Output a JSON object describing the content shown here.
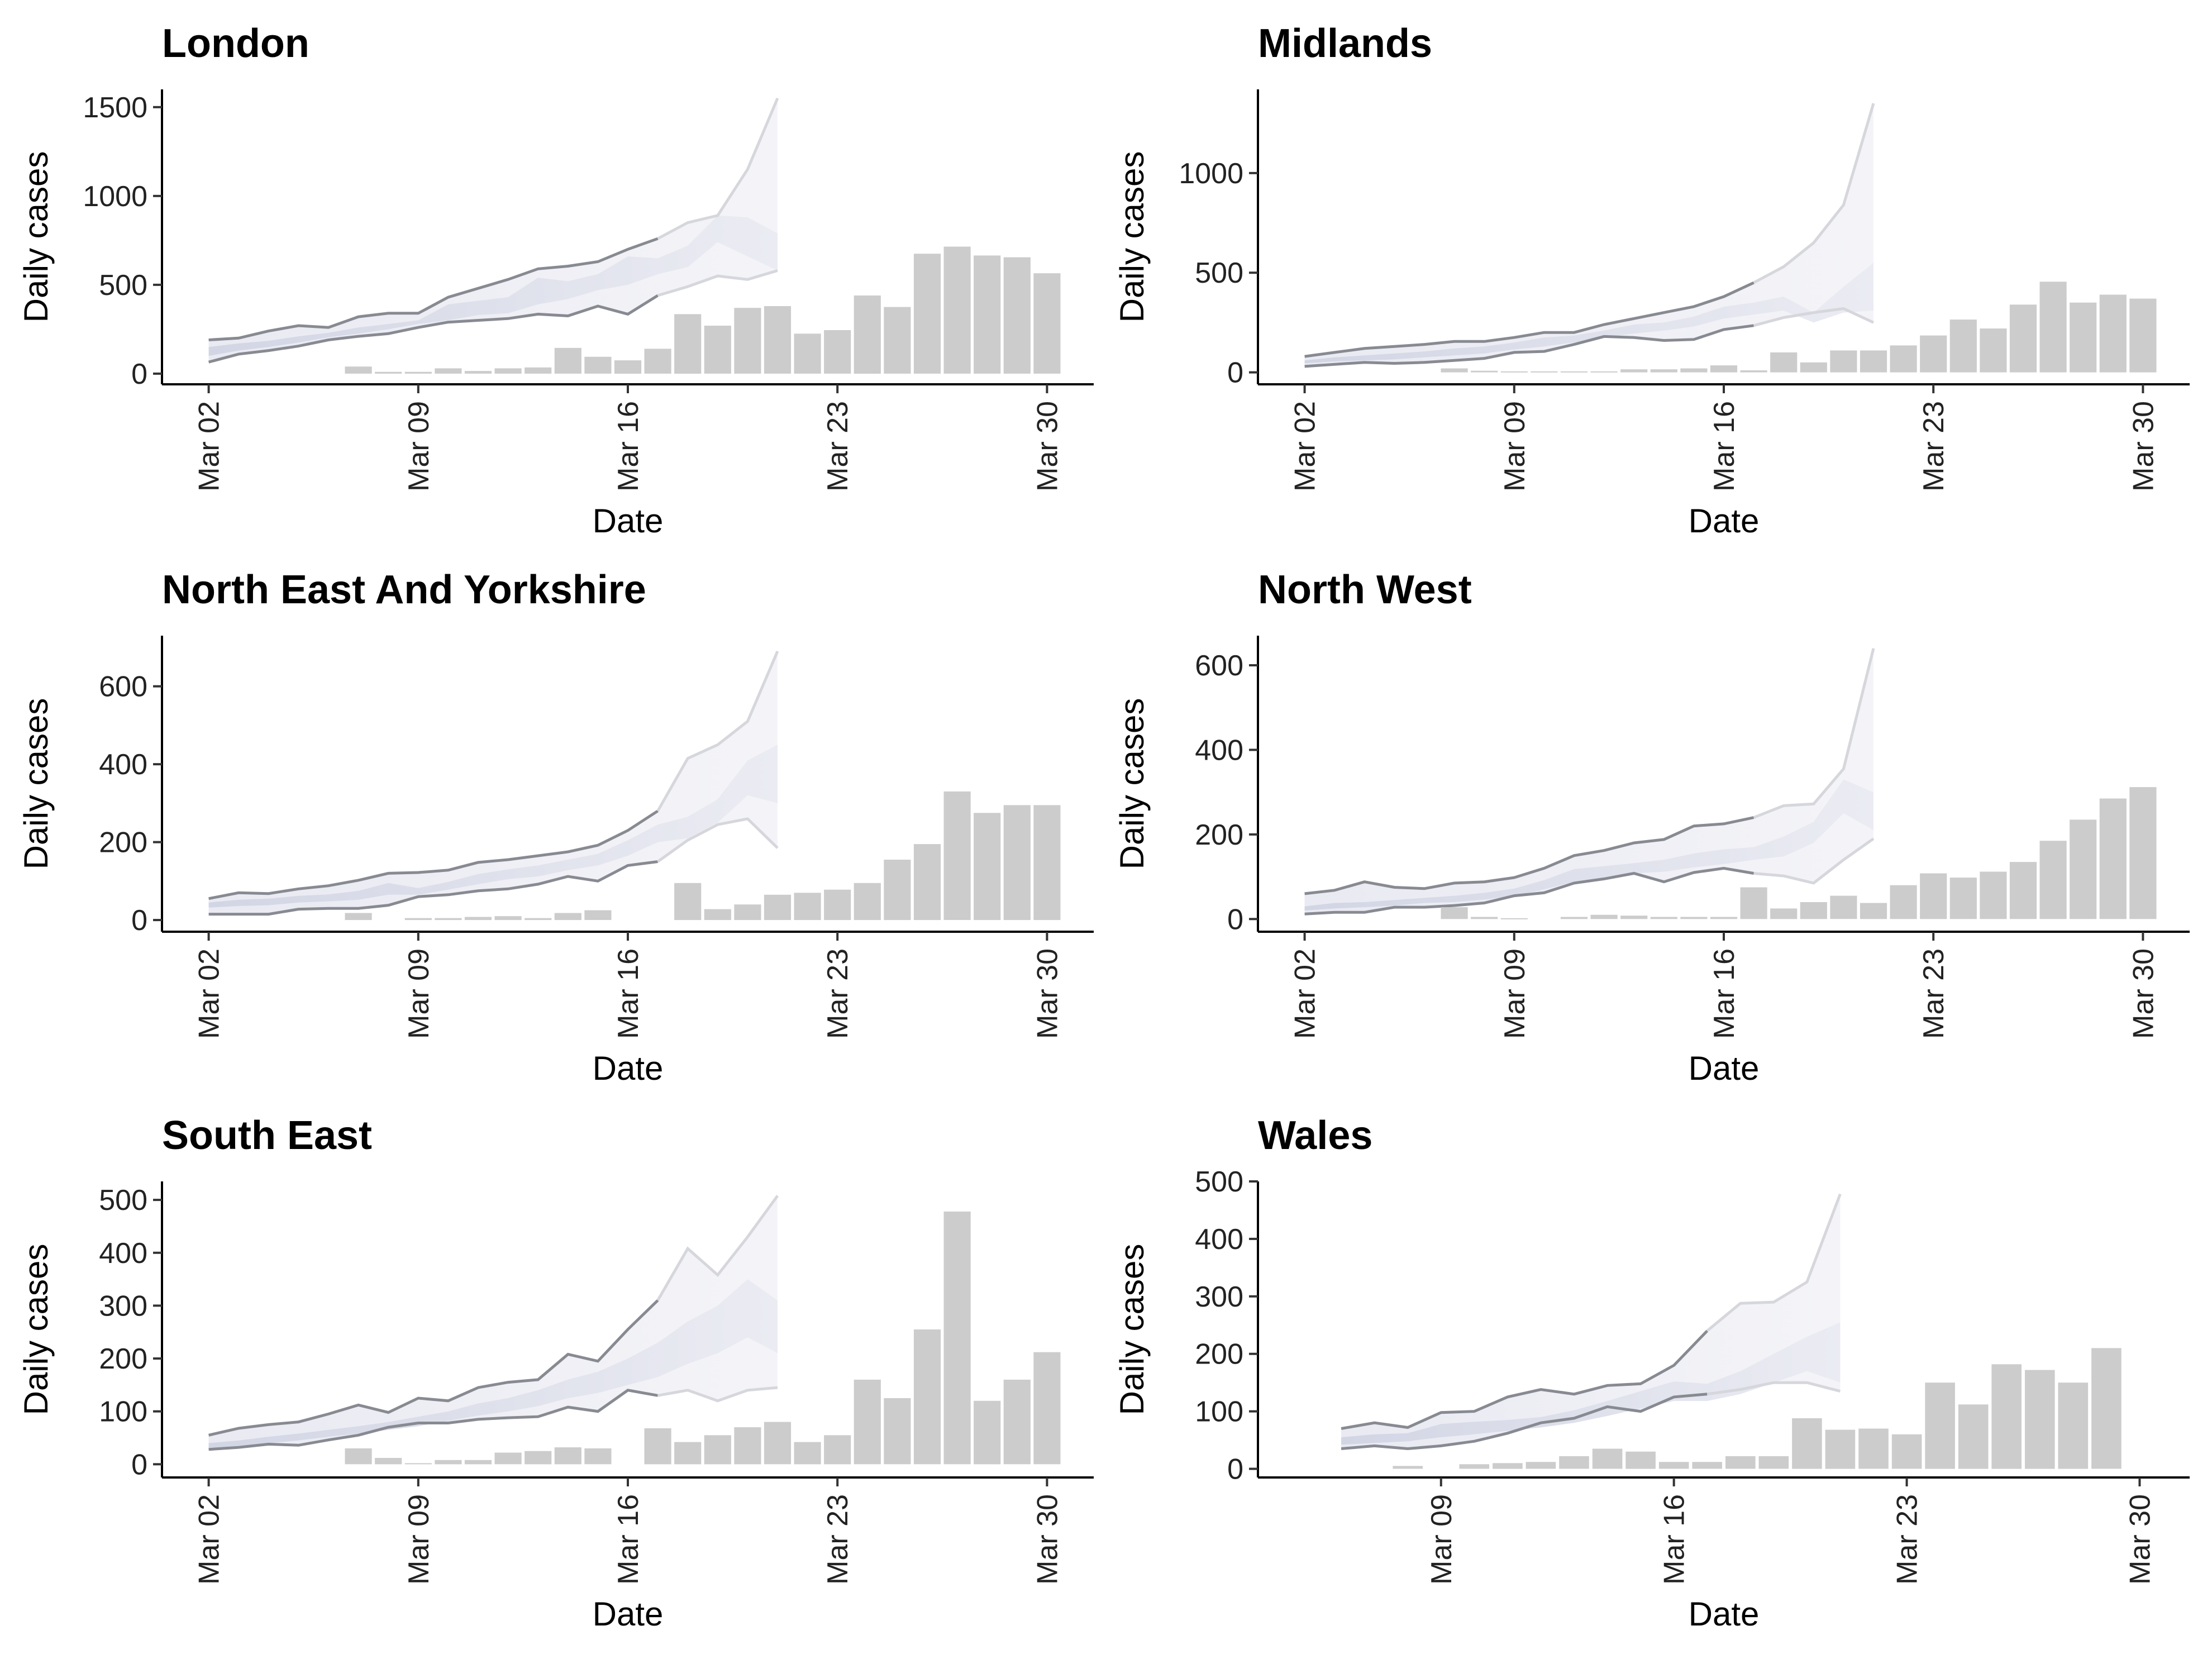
{
  "chart_data": [
    {
      "type": "bar",
      "title": "London",
      "xlabel": "Date",
      "ylabel": "Daily cases",
      "x_ticks": [
        "Mar 02",
        "Mar 09",
        "Mar 16",
        "Mar 23",
        "Mar 30"
      ],
      "y_ticks": [
        0,
        500,
        1000,
        1500
      ],
      "ylim": [
        -60,
        1600
      ],
      "xlim": [
        "2020-03-01",
        "2020-03-31"
      ],
      "cases": {
        "dates": [
          "2020-03-07",
          "2020-03-08",
          "2020-03-09",
          "2020-03-10",
          "2020-03-11",
          "2020-03-12",
          "2020-03-13",
          "2020-03-14",
          "2020-03-15",
          "2020-03-16",
          "2020-03-17",
          "2020-03-18",
          "2020-03-19",
          "2020-03-20",
          "2020-03-21",
          "2020-03-22",
          "2020-03-23",
          "2020-03-24",
          "2020-03-25",
          "2020-03-26",
          "2020-03-27",
          "2020-03-28",
          "2020-03-29",
          "2020-03-30"
        ],
        "values": [
          40,
          10,
          10,
          30,
          15,
          30,
          35,
          145,
          95,
          75,
          140,
          335,
          270,
          370,
          380,
          225,
          245,
          440,
          375,
          675,
          715,
          665,
          655,
          565
        ]
      },
      "estimate": {
        "dates": [
          "2020-03-02",
          "2020-03-03",
          "2020-03-04",
          "2020-03-05",
          "2020-03-06",
          "2020-03-07",
          "2020-03-08",
          "2020-03-09",
          "2020-03-10",
          "2020-03-11",
          "2020-03-12",
          "2020-03-13",
          "2020-03-14",
          "2020-03-15",
          "2020-03-16",
          "2020-03-17",
          "2020-03-18",
          "2020-03-19",
          "2020-03-20",
          "2020-03-21"
        ],
        "upper": [
          190,
          200,
          240,
          270,
          260,
          320,
          340,
          340,
          430,
          480,
          530,
          590,
          605,
          630,
          700,
          760,
          850,
          890,
          1150,
          1550
        ],
        "lower": [
          65,
          110,
          130,
          155,
          190,
          210,
          225,
          260,
          290,
          300,
          310,
          335,
          325,
          380,
          335,
          440,
          490,
          550,
          530,
          580
        ],
        "inner_upper": [
          150,
          170,
          185,
          210,
          230,
          260,
          280,
          300,
          390,
          410,
          430,
          540,
          520,
          560,
          660,
          650,
          720,
          890,
          880,
          790
        ],
        "inner_lower": [
          100,
          130,
          150,
          175,
          205,
          225,
          250,
          280,
          300,
          330,
          340,
          390,
          420,
          470,
          500,
          560,
          600,
          740,
          660,
          580
        ]
      },
      "forecast_from": "2020-03-17"
    },
    {
      "type": "bar",
      "title": "Midlands",
      "xlabel": "Date",
      "ylabel": "Daily cases",
      "x_ticks": [
        "Mar 02",
        "Mar 09",
        "Mar 16",
        "Mar 23",
        "Mar 30"
      ],
      "y_ticks": [
        0,
        500,
        1000
      ],
      "ylim": [
        -60,
        1420
      ],
      "xlim": [
        "2020-03-01",
        "2020-03-31"
      ],
      "cases": {
        "dates": [
          "2020-03-07",
          "2020-03-08",
          "2020-03-09",
          "2020-03-10",
          "2020-03-11",
          "2020-03-12",
          "2020-03-13",
          "2020-03-14",
          "2020-03-15",
          "2020-03-16",
          "2020-03-17",
          "2020-03-18",
          "2020-03-19",
          "2020-03-20",
          "2020-03-21",
          "2020-03-22",
          "2020-03-23",
          "2020-03-24",
          "2020-03-25",
          "2020-03-26",
          "2020-03-27",
          "2020-03-28",
          "2020-03-29",
          "2020-03-30"
        ],
        "values": [
          20,
          8,
          5,
          5,
          5,
          5,
          15,
          15,
          20,
          35,
          10,
          100,
          50,
          110,
          110,
          135,
          185,
          265,
          220,
          340,
          455,
          350,
          390,
          370
        ]
      },
      "estimate": {
        "dates": [
          "2020-03-02",
          "2020-03-03",
          "2020-03-04",
          "2020-03-05",
          "2020-03-06",
          "2020-03-07",
          "2020-03-08",
          "2020-03-09",
          "2020-03-10",
          "2020-03-11",
          "2020-03-12",
          "2020-03-13",
          "2020-03-14",
          "2020-03-15",
          "2020-03-16",
          "2020-03-17",
          "2020-03-18",
          "2020-03-19",
          "2020-03-20",
          "2020-03-21"
        ],
        "upper": [
          80,
          100,
          120,
          130,
          140,
          155,
          155,
          175,
          200,
          200,
          240,
          270,
          300,
          330,
          380,
          450,
          530,
          650,
          840,
          1350
        ],
        "lower": [
          30,
          40,
          50,
          45,
          50,
          60,
          70,
          100,
          105,
          140,
          180,
          175,
          160,
          165,
          215,
          235,
          275,
          300,
          320,
          250
        ],
        "inner_upper": [
          60,
          75,
          85,
          95,
          105,
          120,
          130,
          150,
          175,
          185,
          210,
          240,
          250,
          280,
          330,
          350,
          380,
          300,
          430,
          550
        ],
        "inner_lower": [
          45,
          55,
          60,
          65,
          75,
          85,
          95,
          115,
          130,
          150,
          175,
          195,
          210,
          230,
          270,
          290,
          310,
          250,
          300,
          310
        ]
      },
      "forecast_from": "2020-03-17"
    },
    {
      "type": "bar",
      "title": "North East And Yorkshire",
      "xlabel": "Date",
      "ylabel": "Daily cases",
      "x_ticks": [
        "Mar 02",
        "Mar 09",
        "Mar 16",
        "Mar 23",
        "Mar 30"
      ],
      "y_ticks": [
        0,
        200,
        400,
        600
      ],
      "ylim": [
        -30,
        730
      ],
      "xlim": [
        "2020-03-01",
        "2020-03-31"
      ],
      "cases": {
        "dates": [
          "2020-03-07",
          "2020-03-08",
          "2020-03-09",
          "2020-03-10",
          "2020-03-11",
          "2020-03-12",
          "2020-03-13",
          "2020-03-14",
          "2020-03-15",
          "2020-03-16",
          "2020-03-17",
          "2020-03-18",
          "2020-03-19",
          "2020-03-20",
          "2020-03-21",
          "2020-03-22",
          "2020-03-23",
          "2020-03-24",
          "2020-03-25",
          "2020-03-26",
          "2020-03-27",
          "2020-03-28",
          "2020-03-29",
          "2020-03-30"
        ],
        "values": [
          18,
          0,
          5,
          5,
          8,
          10,
          5,
          18,
          25,
          0,
          0,
          95,
          28,
          40,
          65,
          70,
          78,
          95,
          155,
          195,
          330,
          275,
          295,
          295
        ]
      },
      "estimate": {
        "dates": [
          "2020-03-02",
          "2020-03-03",
          "2020-03-04",
          "2020-03-05",
          "2020-03-06",
          "2020-03-07",
          "2020-03-08",
          "2020-03-09",
          "2020-03-10",
          "2020-03-11",
          "2020-03-12",
          "2020-03-13",
          "2020-03-14",
          "2020-03-15",
          "2020-03-16",
          "2020-03-17",
          "2020-03-18",
          "2020-03-19",
          "2020-03-20",
          "2020-03-21"
        ],
        "upper": [
          55,
          70,
          68,
          80,
          88,
          102,
          120,
          122,
          128,
          148,
          155,
          165,
          175,
          192,
          230,
          280,
          415,
          450,
          510,
          690
        ],
        "lower": [
          15,
          15,
          15,
          28,
          30,
          30,
          38,
          60,
          65,
          75,
          80,
          92,
          112,
          100,
          140,
          150,
          205,
          245,
          260,
          185
        ],
        "inner_upper": [
          45,
          52,
          55,
          62,
          66,
          75,
          95,
          82,
          98,
          118,
          130,
          140,
          155,
          170,
          205,
          245,
          265,
          310,
          410,
          450
        ],
        "inner_lower": [
          32,
          36,
          38,
          45,
          48,
          52,
          65,
          65,
          78,
          92,
          105,
          112,
          128,
          140,
          165,
          200,
          210,
          250,
          320,
          300
        ]
      },
      "forecast_from": "2020-03-17"
    },
    {
      "type": "bar",
      "title": "North West",
      "xlabel": "Date",
      "ylabel": "Daily cases",
      "x_ticks": [
        "Mar 02",
        "Mar 09",
        "Mar 16",
        "Mar 23",
        "Mar 30"
      ],
      "y_ticks": [
        0,
        200,
        400,
        600
      ],
      "ylim": [
        -30,
        670
      ],
      "xlim": [
        "2020-03-01",
        "2020-03-31"
      ],
      "cases": {
        "dates": [
          "2020-03-07",
          "2020-03-08",
          "2020-03-09",
          "2020-03-10",
          "2020-03-11",
          "2020-03-12",
          "2020-03-13",
          "2020-03-14",
          "2020-03-15",
          "2020-03-16",
          "2020-03-17",
          "2020-03-18",
          "2020-03-19",
          "2020-03-20",
          "2020-03-21",
          "2020-03-22",
          "2020-03-23",
          "2020-03-24",
          "2020-03-25",
          "2020-03-26",
          "2020-03-27",
          "2020-03-28",
          "2020-03-29",
          "2020-03-30"
        ],
        "values": [
          28,
          5,
          2,
          0,
          5,
          10,
          8,
          5,
          5,
          5,
          75,
          25,
          40,
          55,
          38,
          80,
          108,
          98,
          112,
          135,
          185,
          235,
          285,
          312
        ]
      },
      "estimate": {
        "dates": [
          "2020-03-02",
          "2020-03-03",
          "2020-03-04",
          "2020-03-05",
          "2020-03-06",
          "2020-03-07",
          "2020-03-08",
          "2020-03-09",
          "2020-03-10",
          "2020-03-11",
          "2020-03-12",
          "2020-03-13",
          "2020-03-14",
          "2020-03-15",
          "2020-03-16",
          "2020-03-17",
          "2020-03-18",
          "2020-03-19",
          "2020-03-20",
          "2020-03-21"
        ],
        "upper": [
          60,
          68,
          88,
          75,
          72,
          85,
          88,
          98,
          120,
          150,
          162,
          180,
          188,
          220,
          225,
          240,
          268,
          272,
          355,
          640
        ],
        "lower": [
          12,
          16,
          16,
          28,
          28,
          32,
          38,
          55,
          62,
          85,
          95,
          108,
          88,
          110,
          120,
          108,
          102,
          85,
          140,
          190
        ],
        "inner_upper": [
          30,
          38,
          40,
          45,
          50,
          55,
          62,
          72,
          92,
          118,
          125,
          132,
          140,
          155,
          165,
          170,
          195,
          230,
          330,
          300
        ],
        "inner_lower": [
          20,
          25,
          28,
          32,
          38,
          40,
          46,
          55,
          70,
          88,
          98,
          108,
          112,
          122,
          130,
          140,
          148,
          180,
          250,
          210
        ]
      },
      "forecast_from": "2020-03-17"
    },
    {
      "type": "bar",
      "title": "South East",
      "xlabel": "Date",
      "ylabel": "Daily cases",
      "x_ticks": [
        "Mar 02",
        "Mar 09",
        "Mar 16",
        "Mar 23",
        "Mar 30"
      ],
      "y_ticks": [
        0,
        100,
        200,
        300,
        400,
        500
      ],
      "ylim": [
        -25,
        535
      ],
      "xlim": [
        "2020-03-01",
        "2020-03-31"
      ],
      "cases": {
        "dates": [
          "2020-03-07",
          "2020-03-08",
          "2020-03-09",
          "2020-03-10",
          "2020-03-11",
          "2020-03-12",
          "2020-03-13",
          "2020-03-14",
          "2020-03-15",
          "2020-03-16",
          "2020-03-17",
          "2020-03-18",
          "2020-03-19",
          "2020-03-20",
          "2020-03-21",
          "2020-03-22",
          "2020-03-23",
          "2020-03-24",
          "2020-03-25",
          "2020-03-26",
          "2020-03-27",
          "2020-03-28",
          "2020-03-29",
          "2020-03-30"
        ],
        "values": [
          30,
          12,
          2,
          8,
          8,
          22,
          25,
          32,
          30,
          0,
          68,
          42,
          55,
          70,
          80,
          42,
          55,
          160,
          125,
          255,
          478,
          120,
          160,
          212
        ]
      },
      "estimate": {
        "dates": [
          "2020-03-02",
          "2020-03-03",
          "2020-03-04",
          "2020-03-05",
          "2020-03-06",
          "2020-03-07",
          "2020-03-08",
          "2020-03-09",
          "2020-03-10",
          "2020-03-11",
          "2020-03-12",
          "2020-03-13",
          "2020-03-14",
          "2020-03-15",
          "2020-03-16",
          "2020-03-17",
          "2020-03-18",
          "2020-03-19",
          "2020-03-20",
          "2020-03-21"
        ],
        "upper": [
          55,
          68,
          75,
          80,
          95,
          112,
          98,
          125,
          120,
          145,
          155,
          160,
          208,
          195,
          255,
          310,
          408,
          358,
          430,
          508
        ],
        "lower": [
          28,
          32,
          38,
          36,
          46,
          55,
          70,
          78,
          78,
          85,
          88,
          90,
          108,
          100,
          140,
          130,
          140,
          120,
          140,
          145
        ],
        "inner_upper": [
          40,
          45,
          52,
          58,
          65,
          72,
          80,
          90,
          100,
          115,
          125,
          140,
          160,
          175,
          200,
          230,
          270,
          300,
          350,
          310
        ],
        "inner_lower": [
          30,
          35,
          40,
          45,
          52,
          58,
          65,
          72,
          82,
          92,
          100,
          110,
          125,
          135,
          150,
          165,
          190,
          210,
          240,
          210
        ]
      },
      "forecast_from": "2020-03-17"
    },
    {
      "type": "bar",
      "title": "Wales",
      "xlabel": "Date",
      "ylabel": "Daily cases",
      "x_ticks": [
        "Mar 09",
        "Mar 16",
        "Mar 23",
        "Mar 30"
      ],
      "y_ticks": [
        0,
        100,
        200,
        300,
        400,
        500
      ],
      "ylim": [
        -15,
        500
      ],
      "xlim": [
        "2020-03-04",
        "2020-03-31"
      ],
      "cases": {
        "dates": [
          "2020-03-08",
          "2020-03-09",
          "2020-03-10",
          "2020-03-11",
          "2020-03-12",
          "2020-03-13",
          "2020-03-14",
          "2020-03-15",
          "2020-03-16",
          "2020-03-17",
          "2020-03-18",
          "2020-03-19",
          "2020-03-20",
          "2020-03-21",
          "2020-03-22",
          "2020-03-23",
          "2020-03-24",
          "2020-03-25",
          "2020-03-26",
          "2020-03-27",
          "2020-03-28",
          "2020-03-29",
          "2020-03-30"
        ],
        "values": [
          5,
          0,
          8,
          10,
          12,
          22,
          35,
          30,
          12,
          12,
          22,
          22,
          88,
          68,
          70,
          60,
          150,
          112,
          182,
          172,
          150,
          210,
          0
        ]
      },
      "estimate": {
        "dates": [
          "2020-03-06",
          "2020-03-07",
          "2020-03-08",
          "2020-03-09",
          "2020-03-10",
          "2020-03-11",
          "2020-03-12",
          "2020-03-13",
          "2020-03-14",
          "2020-03-15",
          "2020-03-16",
          "2020-03-17",
          "2020-03-18",
          "2020-03-19",
          "2020-03-20",
          "2020-03-21"
        ],
        "upper": [
          70,
          80,
          72,
          98,
          100,
          125,
          138,
          130,
          145,
          148,
          180,
          240,
          288,
          290,
          325,
          478
        ],
        "lower": [
          35,
          40,
          35,
          40,
          48,
          62,
          80,
          88,
          108,
          100,
          125,
          130,
          138,
          150,
          150,
          135
        ],
        "inner_upper": [
          55,
          60,
          62,
          78,
          82,
          85,
          90,
          102,
          118,
          135,
          152,
          148,
          170,
          200,
          230,
          255
        ],
        "inner_lower": [
          42,
          45,
          48,
          55,
          60,
          66,
          72,
          80,
          92,
          105,
          118,
          118,
          130,
          150,
          170,
          150
        ]
      },
      "forecast_from": "2020-03-17"
    }
  ]
}
